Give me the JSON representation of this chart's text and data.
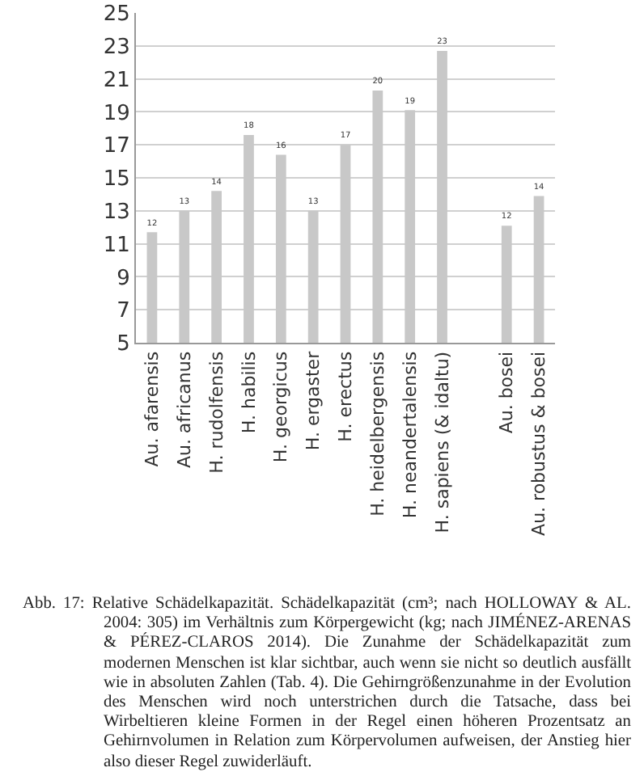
{
  "chart_data": {
    "type": "bar",
    "categories": [
      "Au. afarensis",
      "Au. africanus",
      "H. rudolfensis",
      "H. habilis",
      "H. georgicus",
      "H. ergaster",
      "H. erectus",
      "H. heidelbergensis",
      "H. neandertalensis",
      "H. sapiens (& idaltu)",
      null,
      "Au. bosei",
      "Au. robustus & bosei"
    ],
    "values": [
      11.7,
      13.0,
      14.2,
      17.6,
      16.4,
      13.0,
      17.0,
      20.3,
      19.1,
      22.7,
      null,
      12.1,
      13.9
    ],
    "value_labels": [
      "12",
      "13",
      "14",
      "18",
      "16",
      "13",
      "17",
      "20",
      "19",
      "23",
      null,
      "12",
      "14"
    ],
    "color": "#c8c8c8",
    "ylim": [
      5,
      25
    ],
    "yticks": [
      5,
      7,
      9,
      11,
      13,
      15,
      17,
      19,
      21,
      23,
      25
    ],
    "grid": "y",
    "annotations": [
      "Abb. 17: Relative Schädelkapazität. Schädelkapazität (cm³; nach HOLLOWAY & AL. 2004: 305) im Verhältnis zum Körpergewicht (kg; nach JIMÉNEZ-ARENAS & PÉREZ-CLAROS 2014). Die Zunahme der Schädelkapazität zum modernen Menschen ist klar sichtbar, auch wenn sie nicht so deutlich ausfällt wie in absoluten Zahlen (Tab. 4). Die Gehirngrößenzunahme in der Evolution des Menschen wird noch unterstrichen durch die Tatsache, dass bei Wirbeltieren kleine Formen in der Regel einen höheren Prozentsatz an Gehirnvolumen in Relation zum Körpervolumen aufweisen, der Anstieg hier also dieser Regel zuwiderläuft."
    ]
  }
}
